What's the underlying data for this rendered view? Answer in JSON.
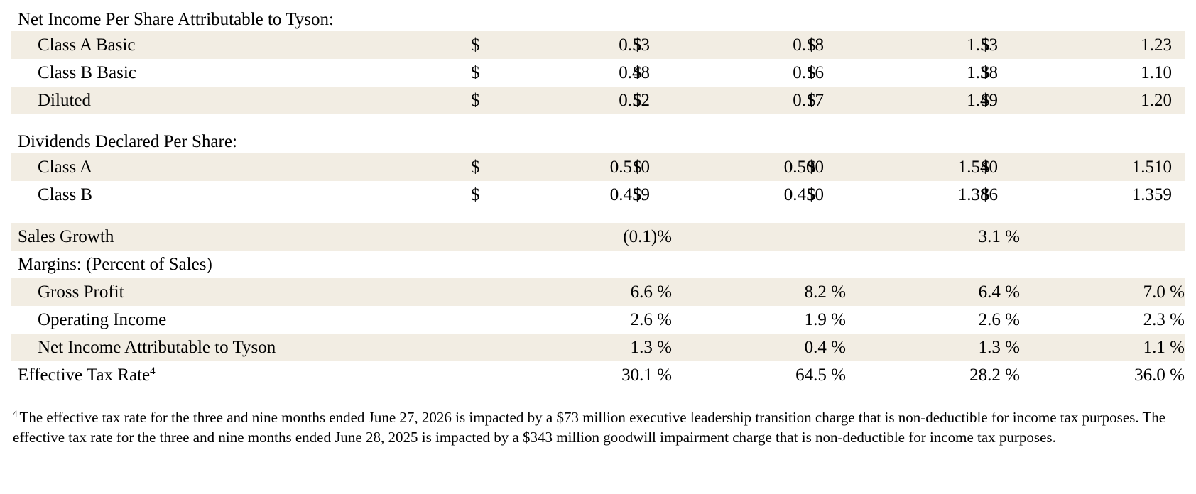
{
  "net_income_section": {
    "title": "Net Income Per Share Attributable to Tyson:",
    "rows": [
      {
        "label": "Class A Basic",
        "cur": "$",
        "values": [
          "0.53",
          "0.18",
          "1.53",
          "1.23"
        ]
      },
      {
        "label": "Class B Basic",
        "cur": "$",
        "values": [
          "0.48",
          "0.16",
          "1.38",
          "1.10"
        ]
      },
      {
        "label": "Diluted",
        "cur": "$",
        "values": [
          "0.52",
          "0.17",
          "1.49",
          "1.20"
        ]
      }
    ]
  },
  "dividends_section": {
    "title": "Dividends Declared Per Share:",
    "rows": [
      {
        "label": "Class A",
        "cur": "$",
        "values": [
          "0.510",
          "0.500",
          "1.540",
          "1.510"
        ]
      },
      {
        "label": "Class B",
        "cur": "$",
        "values": [
          "0.459",
          "0.450",
          "1.386",
          "1.359"
        ]
      }
    ]
  },
  "sales_growth": {
    "label": "Sales Growth",
    "values": [
      "(0.1)%",
      "3.1 %"
    ]
  },
  "margins_section": {
    "title": "Margins: (Percent of Sales)",
    "rows": [
      {
        "label": "Gross Profit",
        "values": [
          "6.6 %",
          "8.2 %",
          "6.4 %",
          "7.0 %"
        ]
      },
      {
        "label": "Operating Income",
        "values": [
          "2.6 %",
          "1.9 %",
          "2.6 %",
          "2.3 %"
        ]
      },
      {
        "label": "Net Income Attributable to Tyson",
        "values": [
          "1.3 %",
          "0.4 %",
          "1.3 %",
          "1.1 %"
        ]
      }
    ]
  },
  "effective_tax_rate": {
    "label": "Effective Tax Rate",
    "superscript": "4",
    "values": [
      "30.1 %",
      "64.5 %",
      "28.2 %",
      "36.0 %"
    ]
  },
  "footnote": {
    "mark": "4",
    "text": "The effective tax rate for the three and nine months ended June 27, 2026 is impacted by a $73 million executive leadership transition charge that is non-deductible for income tax purposes. The effective tax rate for the three and nine months ended June 28, 2025 is impacted by a $343 million goodwill impairment charge that is non-deductible for income tax purposes."
  },
  "colors": {
    "row_shade": "#f2ede3",
    "text": "#000000",
    "background": "#ffffff"
  }
}
